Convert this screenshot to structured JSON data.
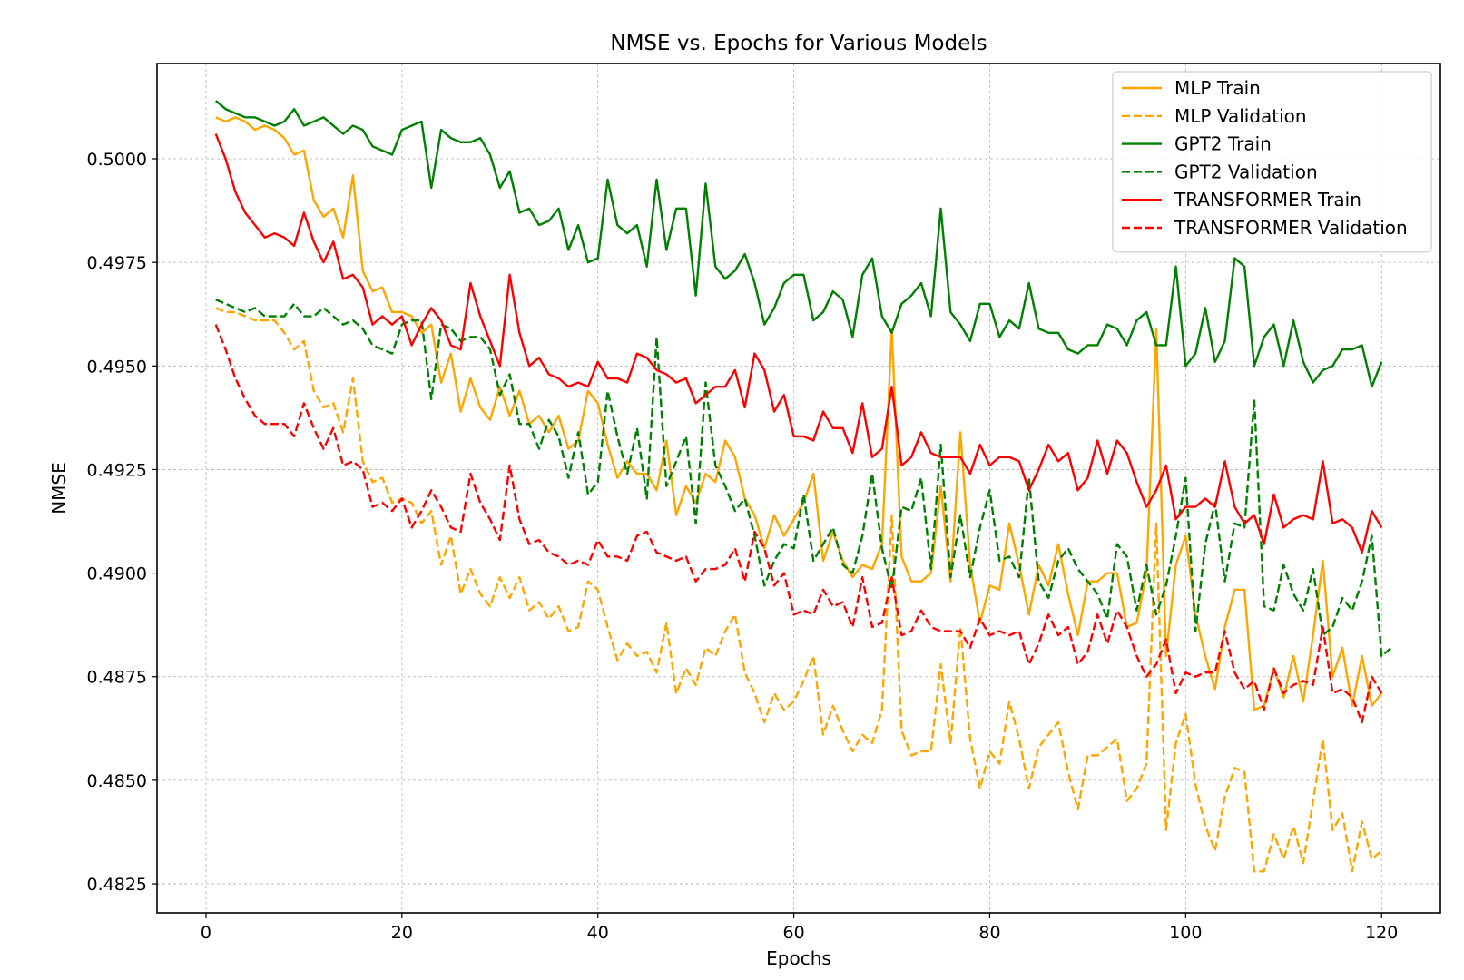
{
  "chart_data": {
    "type": "line",
    "title": "NMSE vs. Epochs for Various Models",
    "xlabel": "Epochs",
    "ylabel": "NMSE",
    "xlim": [
      -5,
      126
    ],
    "ylim": [
      0.4818,
      0.5023
    ],
    "xticks": [
      0,
      20,
      40,
      60,
      80,
      100,
      120
    ],
    "yticks": [
      0.4825,
      0.485,
      0.4875,
      0.49,
      0.4925,
      0.495,
      0.4975,
      0.5
    ],
    "ytick_labels": [
      "0.4825",
      "0.4850",
      "0.4875",
      "0.4900",
      "0.4925",
      "0.4950",
      "0.4975",
      "0.5000"
    ],
    "grid": true,
    "legend_position": "top-right",
    "series": [
      {
        "name": "MLP Train",
        "color": "#ffa500",
        "dash": "solid",
        "values": [
          0.501,
          0.5009,
          0.501,
          0.5009,
          0.5007,
          0.5008,
          0.5007,
          0.5005,
          0.5001,
          0.5002,
          0.499,
          0.4986,
          0.4988,
          0.4981,
          0.4996,
          0.4973,
          0.4968,
          0.4969,
          0.4963,
          0.4963,
          0.4962,
          0.4958,
          0.496,
          0.4946,
          0.4953,
          0.4939,
          0.4947,
          0.494,
          0.4937,
          0.4945,
          0.4938,
          0.4944,
          0.4936,
          0.4938,
          0.4934,
          0.4938,
          0.493,
          0.4932,
          0.4944,
          0.4941,
          0.4931,
          0.4923,
          0.4927,
          0.4924,
          0.4924,
          0.492,
          0.4932,
          0.4914,
          0.4921,
          0.4917,
          0.4924,
          0.4922,
          0.4932,
          0.4928,
          0.4918,
          0.4914,
          0.4906,
          0.4914,
          0.4909,
          0.4913,
          0.4917,
          0.4924,
          0.4903,
          0.491,
          0.4903,
          0.4899,
          0.4902,
          0.4901,
          0.4907,
          0.4959,
          0.4904,
          0.4898,
          0.4898,
          0.49,
          0.4921,
          0.4898,
          0.4934,
          0.4902,
          0.4888,
          0.4897,
          0.4896,
          0.4912,
          0.4902,
          0.489,
          0.4902,
          0.4897,
          0.4907,
          0.4895,
          0.4885,
          0.4898,
          0.4898,
          0.49,
          0.49,
          0.4887,
          0.4888,
          0.49,
          0.4959,
          0.488,
          0.4902,
          0.4909,
          0.489,
          0.488,
          0.4872,
          0.4887,
          0.4896,
          0.4896,
          0.4867,
          0.4868,
          0.4877,
          0.487,
          0.488,
          0.4869,
          0.4885,
          0.4903,
          0.4875,
          0.4882,
          0.4868,
          0.488,
          0.4868,
          0.4871
        ]
      },
      {
        "name": "MLP Validation",
        "color": "#ffa500",
        "dash": "dashed",
        "values": [
          0.4964,
          0.4963,
          0.4963,
          0.4962,
          0.4961,
          0.4961,
          0.4961,
          0.4958,
          0.4954,
          0.4956,
          0.4944,
          0.494,
          0.4941,
          0.4934,
          0.4947,
          0.4927,
          0.4922,
          0.4923,
          0.4917,
          0.4918,
          0.4917,
          0.4912,
          0.4915,
          0.4902,
          0.4909,
          0.4895,
          0.4901,
          0.4895,
          0.4892,
          0.4899,
          0.4894,
          0.4899,
          0.4891,
          0.4893,
          0.4889,
          0.4892,
          0.4886,
          0.4887,
          0.4898,
          0.4896,
          0.4887,
          0.4879,
          0.4883,
          0.488,
          0.4881,
          0.4876,
          0.4888,
          0.4871,
          0.4877,
          0.4873,
          0.4882,
          0.488,
          0.4886,
          0.489,
          0.4876,
          0.4871,
          0.4864,
          0.4871,
          0.4867,
          0.4869,
          0.4874,
          0.488,
          0.4861,
          0.4868,
          0.4862,
          0.4857,
          0.4861,
          0.4859,
          0.4867,
          0.4914,
          0.4862,
          0.4856,
          0.4857,
          0.4857,
          0.4878,
          0.4859,
          0.4887,
          0.486,
          0.4848,
          0.4857,
          0.4854,
          0.4869,
          0.486,
          0.4848,
          0.4858,
          0.4861,
          0.4864,
          0.4852,
          0.4843,
          0.4856,
          0.4856,
          0.4858,
          0.486,
          0.4845,
          0.4848,
          0.4854,
          0.4912,
          0.4838,
          0.4859,
          0.4866,
          0.4849,
          0.4839,
          0.4833,
          0.4846,
          0.4853,
          0.4852,
          0.4828,
          0.4828,
          0.4837,
          0.4831,
          0.4839,
          0.483,
          0.4845,
          0.486,
          0.4838,
          0.4842,
          0.4828,
          0.484,
          0.4831,
          0.4833
        ]
      },
      {
        "name": "GPT2 Train",
        "color": "#008000",
        "dash": "solid",
        "values": [
          0.5014,
          0.5012,
          0.5011,
          0.501,
          0.501,
          0.5009,
          0.5008,
          0.5009,
          0.5012,
          0.5008,
          0.5009,
          0.501,
          0.5008,
          0.5006,
          0.5008,
          0.5007,
          0.5003,
          0.5002,
          0.5001,
          0.5007,
          0.5008,
          0.5009,
          0.4993,
          0.5007,
          0.5005,
          0.5004,
          0.5004,
          0.5005,
          0.5001,
          0.4993,
          0.4997,
          0.4987,
          0.4988,
          0.4984,
          0.4985,
          0.4988,
          0.4978,
          0.4984,
          0.4975,
          0.4976,
          0.4995,
          0.4984,
          0.4982,
          0.4984,
          0.4974,
          0.4995,
          0.4978,
          0.4988,
          0.4988,
          0.4967,
          0.4994,
          0.4974,
          0.4971,
          0.4973,
          0.4977,
          0.497,
          0.496,
          0.4964,
          0.497,
          0.4972,
          0.4972,
          0.4961,
          0.4963,
          0.4968,
          0.4966,
          0.4957,
          0.4972,
          0.4976,
          0.4962,
          0.4958,
          0.4965,
          0.4967,
          0.497,
          0.4962,
          0.4988,
          0.4963,
          0.496,
          0.4956,
          0.4965,
          0.4965,
          0.4957,
          0.4961,
          0.4959,
          0.497,
          0.4959,
          0.4958,
          0.4958,
          0.4954,
          0.4953,
          0.4955,
          0.4955,
          0.496,
          0.4959,
          0.4955,
          0.4961,
          0.4963,
          0.4955,
          0.4955,
          0.4974,
          0.495,
          0.4953,
          0.4964,
          0.4951,
          0.4956,
          0.4976,
          0.4974,
          0.495,
          0.4957,
          0.496,
          0.495,
          0.4961,
          0.4951,
          0.4946,
          0.4949,
          0.495,
          0.4954,
          0.4954,
          0.4955,
          0.4945,
          0.4951
        ]
      },
      {
        "name": "GPT2 Validation",
        "color": "#008000",
        "dash": "dashed",
        "values": [
          0.4966,
          0.4965,
          0.4964,
          0.4963,
          0.4964,
          0.4962,
          0.4962,
          0.4962,
          0.4965,
          0.4962,
          0.4962,
          0.4964,
          0.4962,
          0.496,
          0.4961,
          0.4959,
          0.4955,
          0.4954,
          0.4953,
          0.496,
          0.4961,
          0.4961,
          0.4942,
          0.496,
          0.4959,
          0.4956,
          0.4957,
          0.4957,
          0.4954,
          0.4943,
          0.4948,
          0.4936,
          0.4936,
          0.493,
          0.4937,
          0.4933,
          0.4923,
          0.4934,
          0.4919,
          0.4922,
          0.4944,
          0.4933,
          0.4924,
          0.4935,
          0.4918,
          0.4957,
          0.4921,
          0.4927,
          0.4933,
          0.4912,
          0.4946,
          0.4926,
          0.4921,
          0.4915,
          0.4918,
          0.4909,
          0.4897,
          0.4903,
          0.4907,
          0.4906,
          0.4919,
          0.4903,
          0.4907,
          0.4911,
          0.4902,
          0.49,
          0.4909,
          0.4924,
          0.4906,
          0.4896,
          0.4916,
          0.4915,
          0.4923,
          0.4901,
          0.4931,
          0.4899,
          0.4914,
          0.4899,
          0.4911,
          0.492,
          0.4903,
          0.4904,
          0.4899,
          0.4923,
          0.4898,
          0.4894,
          0.4903,
          0.4906,
          0.4901,
          0.4898,
          0.4895,
          0.4889,
          0.4907,
          0.4904,
          0.4891,
          0.4902,
          0.489,
          0.4897,
          0.4909,
          0.4923,
          0.4886,
          0.4907,
          0.4917,
          0.4898,
          0.4912,
          0.4911,
          0.4942,
          0.4892,
          0.4891,
          0.4902,
          0.4895,
          0.4891,
          0.4901,
          0.4885,
          0.4887,
          0.4894,
          0.4891,
          0.4898,
          0.4909,
          0.488,
          0.4882
        ]
      },
      {
        "name": "TRANSFORMER Train",
        "color": "#ff0000",
        "dash": "solid",
        "values": [
          0.5006,
          0.5,
          0.4992,
          0.4987,
          0.4984,
          0.4981,
          0.4982,
          0.4981,
          0.4979,
          0.4987,
          0.498,
          0.4975,
          0.498,
          0.4971,
          0.4972,
          0.4969,
          0.496,
          0.4962,
          0.496,
          0.4962,
          0.4955,
          0.496,
          0.4964,
          0.4961,
          0.4955,
          0.4954,
          0.497,
          0.4962,
          0.4956,
          0.495,
          0.4972,
          0.4958,
          0.495,
          0.4952,
          0.4948,
          0.4947,
          0.4945,
          0.4946,
          0.4945,
          0.4951,
          0.4947,
          0.4947,
          0.4946,
          0.4953,
          0.4952,
          0.4949,
          0.4948,
          0.4946,
          0.4947,
          0.4941,
          0.4943,
          0.4945,
          0.4945,
          0.4949,
          0.494,
          0.4953,
          0.4949,
          0.4939,
          0.4943,
          0.4933,
          0.4933,
          0.4932,
          0.4939,
          0.4935,
          0.4935,
          0.4929,
          0.4941,
          0.4928,
          0.493,
          0.4945,
          0.4926,
          0.4928,
          0.4934,
          0.4929,
          0.4928,
          0.4928,
          0.4928,
          0.4924,
          0.4931,
          0.4926,
          0.4928,
          0.4928,
          0.4927,
          0.492,
          0.4925,
          0.4931,
          0.4927,
          0.4929,
          0.492,
          0.4923,
          0.4932,
          0.4924,
          0.4932,
          0.4929,
          0.4922,
          0.4916,
          0.492,
          0.4926,
          0.4913,
          0.4916,
          0.4916,
          0.4918,
          0.4916,
          0.4927,
          0.4916,
          0.4912,
          0.4914,
          0.4907,
          0.4919,
          0.4911,
          0.4913,
          0.4914,
          0.4913,
          0.4927,
          0.4912,
          0.4913,
          0.4911,
          0.4905,
          0.4915,
          0.4911
        ]
      },
      {
        "name": "TRANSFORMER Validation",
        "color": "#ff0000",
        "dash": "dashed",
        "values": [
          0.496,
          0.4954,
          0.4947,
          0.4942,
          0.4938,
          0.4936,
          0.4936,
          0.4936,
          0.4933,
          0.4941,
          0.4935,
          0.493,
          0.4935,
          0.4926,
          0.4927,
          0.4925,
          0.4916,
          0.4917,
          0.4915,
          0.4918,
          0.4911,
          0.4915,
          0.492,
          0.4916,
          0.4911,
          0.491,
          0.4924,
          0.4917,
          0.4913,
          0.4908,
          0.4926,
          0.4913,
          0.4907,
          0.4908,
          0.4905,
          0.4904,
          0.4902,
          0.4903,
          0.4902,
          0.4908,
          0.4904,
          0.4904,
          0.4903,
          0.4909,
          0.491,
          0.4905,
          0.4904,
          0.4903,
          0.4904,
          0.4898,
          0.4901,
          0.4901,
          0.4902,
          0.4906,
          0.4898,
          0.491,
          0.4906,
          0.4897,
          0.49,
          0.489,
          0.4891,
          0.489,
          0.4896,
          0.4892,
          0.4893,
          0.4887,
          0.4899,
          0.4887,
          0.4888,
          0.4899,
          0.4885,
          0.4886,
          0.4891,
          0.4887,
          0.4886,
          0.4886,
          0.4886,
          0.4882,
          0.4889,
          0.4885,
          0.4886,
          0.4885,
          0.4886,
          0.4878,
          0.4883,
          0.489,
          0.4885,
          0.4887,
          0.4878,
          0.4881,
          0.489,
          0.4883,
          0.4891,
          0.4887,
          0.488,
          0.4875,
          0.4878,
          0.4884,
          0.4871,
          0.4876,
          0.4875,
          0.4876,
          0.4876,
          0.4886,
          0.4876,
          0.4872,
          0.4874,
          0.4867,
          0.4877,
          0.4871,
          0.4873,
          0.4874,
          0.4873,
          0.4887,
          0.4871,
          0.4872,
          0.487,
          0.4864,
          0.4875,
          0.4871
        ]
      }
    ]
  }
}
